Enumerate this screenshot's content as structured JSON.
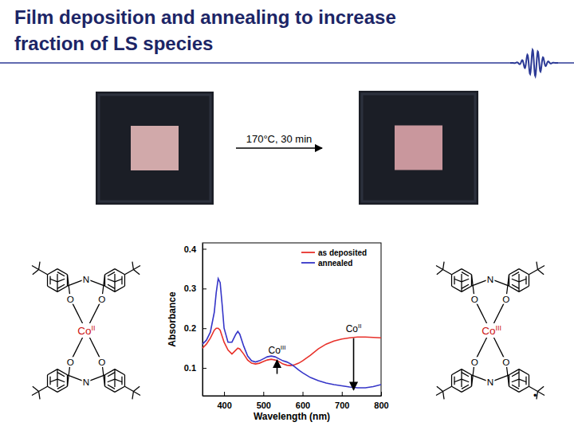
{
  "slide": {
    "title": [
      "Film deposition and annealing to increase",
      "fraction of LS species"
    ],
    "arrow_label": "170°C, 30 min",
    "molecules": [
      {
        "metal": "Co",
        "oxidation": "II",
        "atoms": [
          "N",
          "O",
          "O",
          "N",
          "O",
          "O"
        ]
      },
      {
        "metal": "Co",
        "oxidation": "III",
        "atoms": [
          "N",
          "O",
          "O",
          "N",
          "O",
          "O"
        ],
        "radical": "•"
      }
    ]
  },
  "chart_data": {
    "type": "line",
    "x_label": "Wavelength (nm)",
    "y_label": "Absorbance",
    "x": [
      345,
      355,
      365,
      375,
      380,
      385,
      390,
      395,
      400,
      410,
      420,
      430,
      435,
      440,
      450,
      460,
      470,
      480,
      490,
      500,
      510,
      520,
      530,
      540,
      550,
      560,
      570,
      580,
      590,
      600,
      620,
      640,
      660,
      680,
      700,
      720,
      740,
      760,
      780,
      800
    ],
    "series": [
      {
        "name": "as deposited",
        "color": "#e8322b",
        "values": [
          0.15,
          0.16,
          0.175,
          0.195,
          0.2,
          0.2,
          0.195,
          0.18,
          0.165,
          0.145,
          0.135,
          0.145,
          0.15,
          0.148,
          0.135,
          0.12,
          0.112,
          0.11,
          0.112,
          0.116,
          0.12,
          0.122,
          0.12,
          0.116,
          0.11,
          0.107,
          0.106,
          0.108,
          0.112,
          0.118,
          0.132,
          0.148,
          0.16,
          0.168,
          0.173,
          0.176,
          0.178,
          0.178,
          0.177,
          0.176
        ]
      },
      {
        "name": "annealed",
        "color": "#3535c8",
        "values": [
          0.16,
          0.17,
          0.19,
          0.24,
          0.29,
          0.325,
          0.315,
          0.26,
          0.2,
          0.165,
          0.165,
          0.185,
          0.192,
          0.185,
          0.155,
          0.13,
          0.118,
          0.115,
          0.118,
          0.123,
          0.128,
          0.13,
          0.128,
          0.123,
          0.118,
          0.115,
          0.11,
          0.103,
          0.095,
          0.088,
          0.076,
          0.068,
          0.062,
          0.058,
          0.055,
          0.052,
          0.05,
          0.05,
          0.053,
          0.058
        ]
      }
    ],
    "xlim": [
      345,
      800
    ],
    "xticks": [
      400,
      500,
      600,
      700,
      800
    ],
    "ylim": [
      0.03,
      0.415
    ],
    "yticks": [
      0.1,
      0.2,
      0.3,
      0.4
    ],
    "legend": "upper right",
    "annotations": [
      {
        "text": "Co",
        "sup": "III",
        "x": 535,
        "arrow": [
          0.085,
          0.12
        ]
      },
      {
        "text": "Co",
        "sup": "II",
        "x": 730,
        "arrow": [
          0.175,
          0.045
        ]
      }
    ]
  }
}
